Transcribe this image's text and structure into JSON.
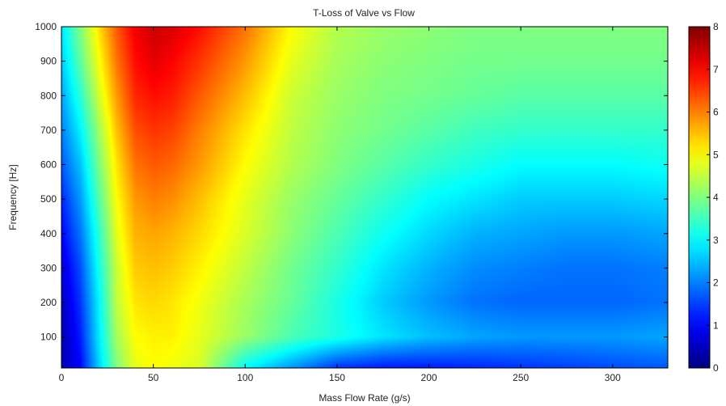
{
  "chart_data": {
    "type": "heatmap",
    "title": "T-Loss of Valve vs Flow",
    "xlabel": "Mass Flow Rate (g/s)",
    "ylabel": "Frequency [Hz]",
    "xlim": [
      0,
      330
    ],
    "ylim": [
      10,
      1000
    ],
    "x_ticks": [
      "0",
      "50",
      "100",
      "150",
      "200",
      "250",
      "300"
    ],
    "y_ticks": [
      "100",
      "200",
      "300",
      "400",
      "500",
      "600",
      "700",
      "800",
      "900",
      "1000"
    ],
    "colorbar": {
      "min": 0,
      "max": 8,
      "ticks": [
        "0",
        "1",
        "2",
        "3",
        "4",
        "5",
        "6",
        "7",
        "8"
      ],
      "colormap": "jet"
    },
    "grid": false,
    "x": [
      0,
      10,
      20,
      30,
      40,
      50,
      60,
      75,
      100,
      125,
      150,
      175,
      200,
      225,
      250,
      275,
      300,
      330
    ],
    "y": [
      10,
      100,
      200,
      300,
      400,
      500,
      600,
      700,
      800,
      900,
      1000
    ],
    "z": [
      [
        0.4,
        1.0,
        2.6,
        4.0,
        4.8,
        5.0,
        4.9,
        4.7,
        3.0,
        2.2,
        1.4,
        1.2,
        1.2,
        1.3,
        1.4,
        1.5,
        1.6,
        1.7
      ],
      [
        0.4,
        1.2,
        2.8,
        4.3,
        5.0,
        5.1,
        5.1,
        4.8,
        4.2,
        3.6,
        3.2,
        2.8,
        2.5,
        2.3,
        2.2,
        2.2,
        2.2,
        2.3
      ],
      [
        0.5,
        1.4,
        2.9,
        4.5,
        5.2,
        5.3,
        5.2,
        4.9,
        4.3,
        3.8,
        3.2,
        2.6,
        2.2,
        1.9,
        1.8,
        1.8,
        1.8,
        1.9
      ],
      [
        0.7,
        1.6,
        3.1,
        4.6,
        5.4,
        5.5,
        5.4,
        5.1,
        4.5,
        3.9,
        3.4,
        2.8,
        2.4,
        2.1,
        2.0,
        1.9,
        1.9,
        2.0
      ],
      [
        1.0,
        1.9,
        3.3,
        4.8,
        5.6,
        5.7,
        5.6,
        5.3,
        4.7,
        4.1,
        3.6,
        3.1,
        2.7,
        2.4,
        2.3,
        2.2,
        2.2,
        2.3
      ],
      [
        1.3,
        2.2,
        3.6,
        5.0,
        5.8,
        6.0,
        5.9,
        5.5,
        4.8,
        4.2,
        3.8,
        3.4,
        3.0,
        2.8,
        2.6,
        2.6,
        2.6,
        2.7
      ],
      [
        1.7,
        2.5,
        3.9,
        5.2,
        6.1,
        6.3,
        6.2,
        5.8,
        5.0,
        4.4,
        4.0,
        3.7,
        3.4,
        3.2,
        3.0,
        3.0,
        3.0,
        3.1
      ],
      [
        2.0,
        2.9,
        4.2,
        5.5,
        6.4,
        6.6,
        6.5,
        6.0,
        5.2,
        4.5,
        4.1,
        3.9,
        3.7,
        3.5,
        3.4,
        3.4,
        3.4,
        3.4
      ],
      [
        2.3,
        3.3,
        4.6,
        5.8,
        6.7,
        6.9,
        6.8,
        6.3,
        5.5,
        4.6,
        4.2,
        4.0,
        3.9,
        3.8,
        3.7,
        3.7,
        3.7,
        3.7
      ],
      [
        2.6,
        3.7,
        4.9,
        6.1,
        6.9,
        7.2,
        7.0,
        6.6,
        5.8,
        4.8,
        4.3,
        4.1,
        4.0,
        3.9,
        3.9,
        3.9,
        3.9,
        3.9
      ],
      [
        2.8,
        4.0,
        5.2,
        6.3,
        7.1,
        7.4,
        7.3,
        6.9,
        6.1,
        5.0,
        4.4,
        4.2,
        4.1,
        4.0,
        4.0,
        4.0,
        4.0,
        4.0
      ]
    ]
  }
}
